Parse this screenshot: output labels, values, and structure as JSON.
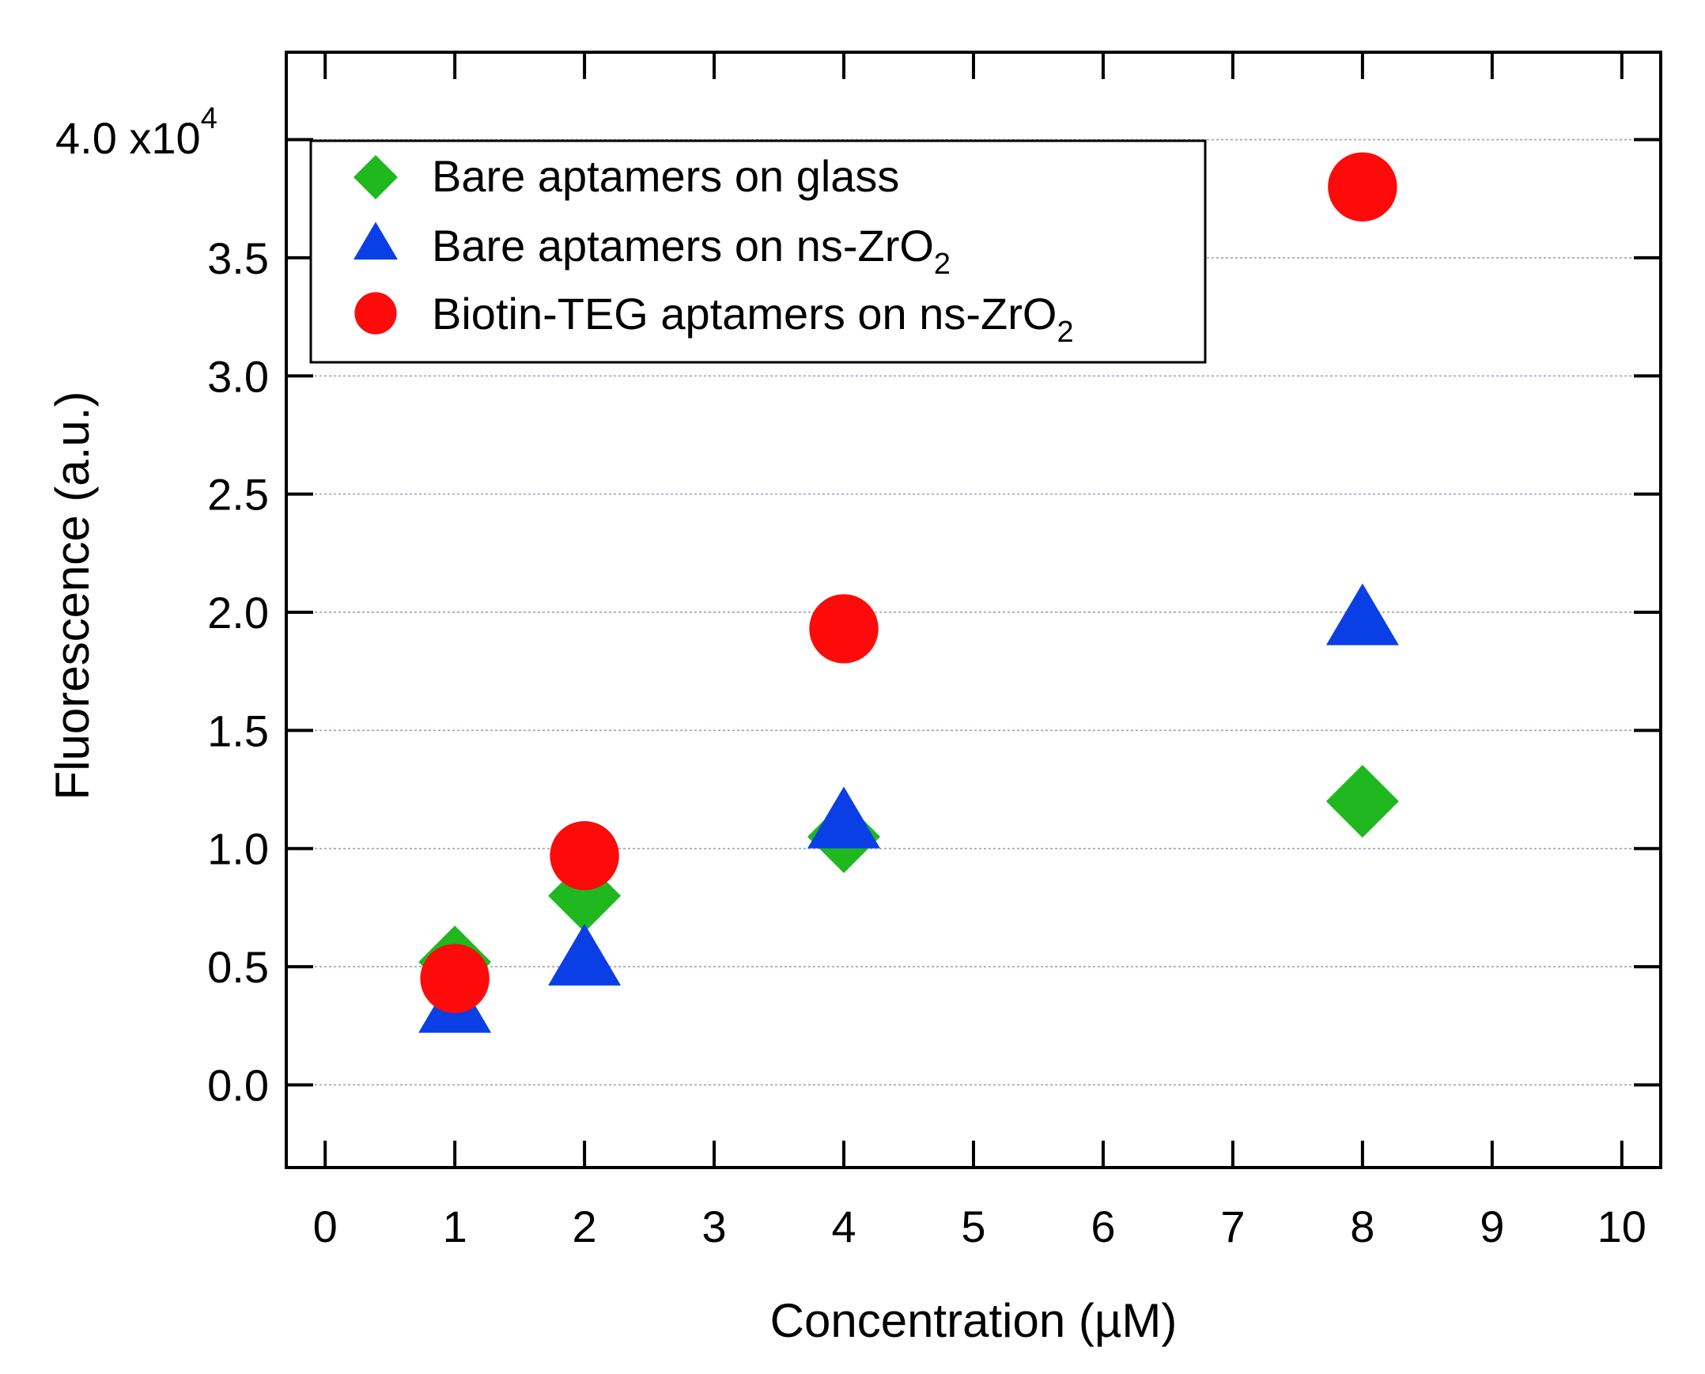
{
  "chart_data": {
    "type": "scatter",
    "title": "",
    "xlabel": "Concentration (µM)",
    "ylabel": "Fluorescence (a.u.)",
    "xlim": [
      -0.3,
      10.3
    ],
    "ylim": [
      -0.35,
      4.37
    ],
    "x_ticks": [
      "0",
      "1",
      "2",
      "3",
      "4",
      "5",
      "6",
      "7",
      "8",
      "9",
      "10"
    ],
    "y_ticks": [
      "0.0",
      "0.5",
      "1.0",
      "1.5",
      "2.0",
      "2.5",
      "3.0",
      "3.5"
    ],
    "y_top_tick": {
      "mantissa": "4.0 x10",
      "exponent": "4"
    },
    "grid": "horizontal dotted",
    "legend_position": "top-left",
    "series": [
      {
        "name": "Bare aptamers on glass",
        "legend_main": "Bare aptamers on glass",
        "legend_sub": "",
        "marker": "diamond",
        "color": "#1fb81f",
        "x": [
          1,
          2,
          4,
          8
        ],
        "y": [
          0.52,
          0.8,
          1.05,
          1.2
        ]
      },
      {
        "name": "Bare aptamers on ns-ZrO2",
        "legend_main": "Bare aptamers on ns-ZrO",
        "legend_sub": "2",
        "marker": "triangle",
        "color": "#0a3fe6",
        "x": [
          1,
          2,
          4,
          8
        ],
        "y": [
          0.32,
          0.52,
          1.1,
          1.96
        ]
      },
      {
        "name": "Biotin-TEG aptamers on ns-ZrO2",
        "legend_main": "Biotin-TEG aptamers on ns-ZrO",
        "legend_sub": "2",
        "marker": "circle",
        "color": "#ff0a0a",
        "x": [
          1,
          2,
          4,
          8
        ],
        "y": [
          0.45,
          0.97,
          1.93,
          3.8
        ]
      }
    ]
  }
}
